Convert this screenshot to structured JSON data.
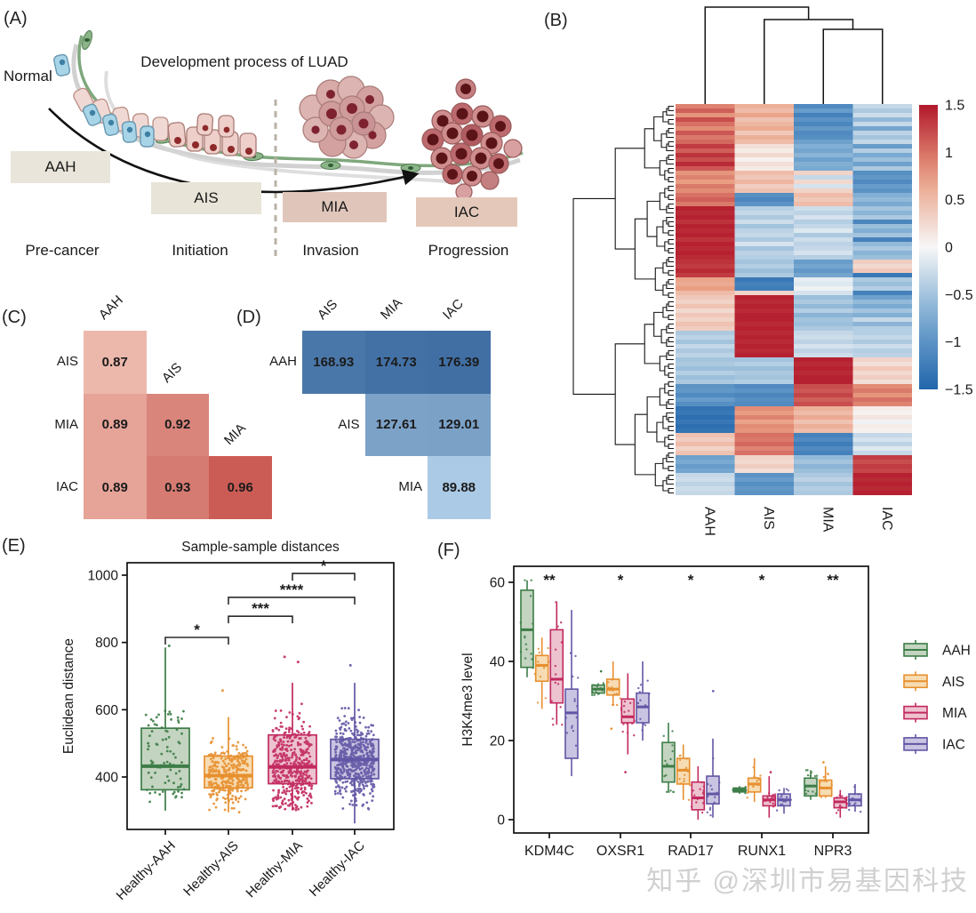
{
  "watermark": "知乎 @深圳市易基因科技",
  "colors": {
    "aah": "#3c7d47",
    "aah_fill": "#c3d4c0",
    "ais": "#e78f2e",
    "ais_fill": "#f7dcb3",
    "mia": "#c2295f",
    "mia_fill": "#edc3d0",
    "iac": "#6156a5",
    "iac_fill": "#c9c4e1",
    "heat_red": "#b2182b",
    "heat_white": "#f7f7f7",
    "heat_blue": "#2166ac",
    "corr_low": "#f3c7ba",
    "corr_high": "#c54d48",
    "dist_low": "#b5d2ea",
    "dist_high": "#36669d",
    "stage_box_aah": "#e9e5da",
    "stage_box_ais": "#e8e4d8",
    "stage_box_mia": "#e0c6ba",
    "stage_box_iac": "#e4c9bb"
  },
  "panels": {
    "A": {
      "label": "(A)",
      "title": "Development process of LUAD",
      "normal": "Normal",
      "stages": [
        {
          "name": "AAH",
          "phase": "Pre-cancer"
        },
        {
          "name": "AIS",
          "phase": "Initiation"
        },
        {
          "name": "MIA",
          "phase": "Invasion"
        },
        {
          "name": "IAC",
          "phase": "Progression"
        }
      ]
    },
    "B": {
      "label": "(B)"
    },
    "C": {
      "label": "(C)"
    },
    "D": {
      "label": "(D)"
    },
    "E": {
      "label": "(E)"
    },
    "F": {
      "label": "(F)"
    }
  },
  "chart_data": [
    {
      "id": "B",
      "type": "heatmap",
      "columns": [
        "AAH",
        "AIS",
        "MIA",
        "IAC"
      ],
      "colorbar_ticks": [
        "1.5",
        "1",
        "0.5",
        "0",
        "−0.5",
        "−1",
        "−1.5"
      ],
      "vmin": -1.5,
      "vmax": 1.5,
      "legend_position": "right",
      "matrix": [
        [
          0.9,
          0.6,
          -1.1,
          -0.3
        ],
        [
          1.1,
          0.5,
          -0.9,
          -0.45
        ],
        [
          0.8,
          0.7,
          -1.2,
          -0.25
        ],
        [
          1.2,
          0.45,
          -1.0,
          -0.6
        ],
        [
          1.0,
          0.55,
          -1.15,
          -0.3
        ],
        [
          0.85,
          0.65,
          -0.95,
          -0.8
        ],
        [
          1.15,
          0.4,
          -1.1,
          -0.35
        ],
        [
          0.95,
          0.6,
          -1.05,
          -0.5
        ],
        [
          1.05,
          0.5,
          -0.85,
          -0.3
        ],
        [
          1.3,
          0.2,
          -0.7,
          -0.9
        ],
        [
          1.1,
          0.1,
          -0.8,
          -0.4
        ],
        [
          1.35,
          0.25,
          -0.65,
          -0.75
        ],
        [
          1.2,
          0.05,
          -0.85,
          -0.55
        ],
        [
          1.4,
          0.2,
          -0.7,
          -0.85
        ],
        [
          1.15,
          0.1,
          -0.75,
          -0.45
        ],
        [
          0.8,
          0.5,
          0.3,
          -1.05
        ],
        [
          0.9,
          0.4,
          -0.3,
          -0.95
        ],
        [
          0.75,
          0.55,
          0.25,
          -1.1
        ],
        [
          0.95,
          0.35,
          -0.2,
          -0.9
        ],
        [
          0.85,
          0.45,
          0.3,
          -1.0
        ],
        [
          1.0,
          -1.05,
          0.5,
          -0.7
        ],
        [
          1.1,
          -1.15,
          0.4,
          -0.6
        ],
        [
          0.95,
          -1.0,
          0.5,
          -0.75
        ],
        [
          1.45,
          -0.4,
          -0.25,
          -0.5
        ],
        [
          1.4,
          -0.3,
          -0.35,
          -0.65
        ],
        [
          1.45,
          -0.45,
          -0.2,
          -0.45
        ],
        [
          1.35,
          -0.25,
          -0.4,
          -1.15
        ],
        [
          1.45,
          -0.5,
          -0.3,
          -0.55
        ],
        [
          1.4,
          -0.35,
          -0.15,
          -0.7
        ],
        [
          1.45,
          -0.3,
          -0.45,
          -0.5
        ],
        [
          1.35,
          -0.45,
          -0.25,
          -1.2
        ],
        [
          1.45,
          -0.2,
          -0.35,
          -0.6
        ],
        [
          1.4,
          -0.5,
          -0.3,
          -0.45
        ],
        [
          1.45,
          -0.35,
          -0.2,
          -0.65
        ],
        [
          1.4,
          -0.4,
          -0.4,
          -0.55
        ],
        [
          1.35,
          -0.5,
          -0.9,
          0.35
        ],
        [
          1.3,
          -0.4,
          -0.8,
          0.25
        ],
        [
          1.4,
          -0.55,
          -0.95,
          0.4
        ],
        [
          1.3,
          -0.45,
          -0.8,
          -1.3
        ],
        [
          0.7,
          -1.3,
          -0.1,
          -0.45
        ],
        [
          0.65,
          -1.2,
          -0.15,
          -0.55
        ],
        [
          0.75,
          -1.25,
          -0.05,
          -0.4
        ],
        [
          0.5,
          0.3,
          -0.2,
          -1.2
        ],
        [
          0.4,
          1.45,
          -0.55,
          -0.85
        ],
        [
          0.3,
          1.4,
          -0.45,
          -0.6
        ],
        [
          0.45,
          1.45,
          -0.6,
          -0.75
        ],
        [
          0.25,
          1.4,
          -0.4,
          -0.5
        ],
        [
          0.4,
          1.45,
          -0.65,
          -0.7
        ],
        [
          0.3,
          1.45,
          -0.5,
          -0.3
        ],
        [
          0.45,
          1.4,
          -0.55,
          -0.65
        ],
        [
          0.35,
          1.45,
          -0.45,
          -0.4
        ],
        [
          -0.45,
          1.4,
          -0.3,
          -0.4
        ],
        [
          -0.35,
          1.45,
          -0.25,
          -0.3
        ],
        [
          -0.5,
          1.4,
          -0.35,
          -0.45
        ],
        [
          -0.3,
          1.45,
          -0.2,
          -0.25
        ],
        [
          -0.45,
          1.4,
          -0.35,
          -0.4
        ],
        [
          -0.35,
          1.45,
          -0.25,
          -0.35
        ],
        [
          -0.5,
          -0.5,
          1.45,
          0.3
        ],
        [
          -0.45,
          -0.4,
          1.4,
          0.2
        ],
        [
          -0.55,
          -0.55,
          1.45,
          0.4
        ],
        [
          -0.4,
          -0.45,
          1.4,
          0.25
        ],
        [
          -0.55,
          -0.5,
          1.45,
          0.35
        ],
        [
          -0.45,
          -0.4,
          1.45,
          0.2
        ],
        [
          -1.0,
          -1.1,
          1.2,
          0.85
        ],
        [
          -0.95,
          -1.0,
          1.15,
          0.95
        ],
        [
          -1.1,
          -1.15,
          1.25,
          0.8
        ],
        [
          -0.9,
          -1.05,
          1.1,
          1.0
        ],
        [
          -1.05,
          -1.1,
          1.2,
          0.9
        ],
        [
          -1.35,
          0.85,
          0.6,
          0.1
        ],
        [
          -1.3,
          0.75,
          0.5,
          0.05
        ],
        [
          -1.4,
          0.9,
          0.65,
          0.15
        ],
        [
          -1.3,
          0.7,
          0.45,
          -0.05
        ],
        [
          -1.4,
          0.85,
          0.6,
          0.1
        ],
        [
          -1.35,
          0.8,
          0.5,
          0.05
        ],
        [
          0.45,
          1.0,
          -1.2,
          -0.3
        ],
        [
          0.35,
          0.95,
          -1.1,
          -0.2
        ],
        [
          0.5,
          1.05,
          -1.25,
          -0.35
        ],
        [
          0.3,
          0.9,
          -1.1,
          -0.15
        ],
        [
          0.45,
          1.0,
          -1.2,
          -0.3
        ],
        [
          -0.85,
          0.3,
          -0.6,
          1.3
        ],
        [
          -0.75,
          0.25,
          -0.5,
          1.2
        ],
        [
          -0.9,
          0.35,
          -0.65,
          1.3
        ],
        [
          -0.8,
          0.2,
          -0.55,
          1.25
        ],
        [
          -0.3,
          -1.0,
          -0.45,
          1.45
        ],
        [
          -0.25,
          -0.9,
          -0.35,
          1.4
        ],
        [
          -0.35,
          -1.05,
          -0.5,
          1.45
        ],
        [
          -0.25,
          -0.95,
          -0.4,
          1.4
        ],
        [
          -0.3,
          -1.0,
          -0.45,
          1.45
        ]
      ]
    },
    {
      "id": "C",
      "type": "heatmap",
      "kind": "correlation-triangle",
      "row_labels": [
        "AIS",
        "MIA",
        "IAC"
      ],
      "diag_labels": [
        "AAH",
        "AIS",
        "MIA"
      ],
      "cells": [
        [
          "0.87",
          null,
          null
        ],
        [
          "0.89",
          "0.92",
          null
        ],
        [
          "0.89",
          "0.93",
          "0.96"
        ]
      ]
    },
    {
      "id": "D",
      "type": "heatmap",
      "kind": "distance-triangle",
      "row_labels": [
        "AAH",
        "AIS",
        "MIA"
      ],
      "diag_labels": [
        "AIS",
        "MIA",
        "IAC"
      ],
      "cells": [
        [
          "168.93",
          "174.73",
          "176.39"
        ],
        [
          null,
          "127.61",
          "129.01"
        ],
        [
          null,
          null,
          "89.88"
        ]
      ]
    },
    {
      "id": "E",
      "type": "box",
      "title": "Sample-sample distances",
      "ylabel": "Euclidean distance",
      "yticks": [
        400,
        600,
        800,
        1000
      ],
      "ylim": [
        244,
        1037
      ],
      "categories": [
        "Healthy-AAH",
        "Healthy-AIS",
        "Healthy-MIA",
        "Healthy-IAC"
      ],
      "color_keys": [
        "aah",
        "ais",
        "mia",
        "iac"
      ],
      "groups": [
        {
          "lo": 300,
          "q1": 362,
          "med": 432,
          "q3": 545,
          "hi": 785,
          "n": 85,
          "outliers": [
            790
          ]
        },
        {
          "lo": 295,
          "q1": 368,
          "med": 404,
          "q3": 462,
          "hi": 578,
          "n": 300,
          "outliers": [
            657
          ]
        },
        {
          "lo": 302,
          "q1": 380,
          "med": 430,
          "q3": 525,
          "hi": 680,
          "n": 430,
          "outliers": [
            757,
            742
          ]
        },
        {
          "lo": 262,
          "q1": 395,
          "med": 452,
          "q3": 512,
          "hi": 680,
          "n": 520,
          "outliers": [
            732
          ]
        }
      ],
      "significance": [
        {
          "a": 0,
          "b": 1,
          "label": "*",
          "y": 815
        },
        {
          "a": 1,
          "b": 2,
          "label": "***",
          "y": 878
        },
        {
          "a": 1,
          "b": 3,
          "label": "****",
          "y": 934
        },
        {
          "a": 2,
          "b": 3,
          "label": "*",
          "y": 1005
        }
      ]
    },
    {
      "id": "F",
      "type": "box",
      "ylabel": "H3K4me3 level",
      "yticks": [
        0,
        20,
        40,
        60
      ],
      "ylim": [
        -3,
        64
      ],
      "genes": [
        "KDM4C",
        "OXSR1",
        "RAD17",
        "RUNX1",
        "NPR3"
      ],
      "series": [
        "AAH",
        "AIS",
        "MIA",
        "IAC"
      ],
      "color_keys": [
        "aah",
        "ais",
        "mia",
        "iac"
      ],
      "significance": [
        "**",
        "*",
        "*",
        "*",
        "**"
      ],
      "boxes": [
        [
          [
            36,
            38.5,
            48,
            58,
            60.5
          ],
          [
            28,
            35,
            39,
            41.5,
            46
          ],
          [
            24,
            29.5,
            35.5,
            48,
            55
          ],
          [
            11,
            15.5,
            27,
            33,
            53
          ]
        ],
        [
          [
            31.5,
            32,
            33,
            34,
            34.5
          ],
          [
            29,
            31.5,
            33,
            35.5,
            40
          ],
          [
            16.5,
            24.5,
            26,
            30.5,
            37
          ],
          [
            20,
            24.5,
            28.5,
            32,
            40
          ]
        ],
        [
          [
            7,
            9.5,
            13.5,
            19.5,
            24.5
          ],
          [
            5,
            9,
            12.5,
            15.5,
            19
          ],
          [
            0,
            2.5,
            5.5,
            9.5,
            13.5
          ],
          [
            0.5,
            4,
            6.5,
            11,
            20.5
          ]
        ],
        [
          [
            6.5,
            7,
            7.5,
            8,
            8.5
          ],
          [
            4.5,
            7,
            9,
            10.5,
            15.5
          ],
          [
            0.5,
            3.5,
            5,
            6,
            11
          ],
          [
            1.5,
            3.5,
            5,
            6.5,
            8
          ]
        ],
        [
          [
            5,
            6,
            8.5,
            10.5,
            12.5
          ],
          [
            5.5,
            6,
            8,
            10,
            13.5
          ],
          [
            0.5,
            3,
            4.5,
            5.5,
            7.5
          ],
          [
            2,
            3.5,
            5,
            6.5,
            9
          ]
        ]
      ],
      "extras": [
        {
          "g": 1,
          "s": 0,
          "v": 37.5
        },
        {
          "g": 1,
          "s": 1,
          "v": 23
        },
        {
          "g": 1,
          "s": 2,
          "v": 12
        },
        {
          "g": 2,
          "s": 3,
          "v": 32.5
        },
        {
          "g": 3,
          "s": 2,
          "v": 12
        },
        {
          "g": 4,
          "s": 1,
          "v": 14.5
        }
      ],
      "legend": [
        "AAH",
        "AIS",
        "MIA",
        "IAC"
      ]
    }
  ]
}
